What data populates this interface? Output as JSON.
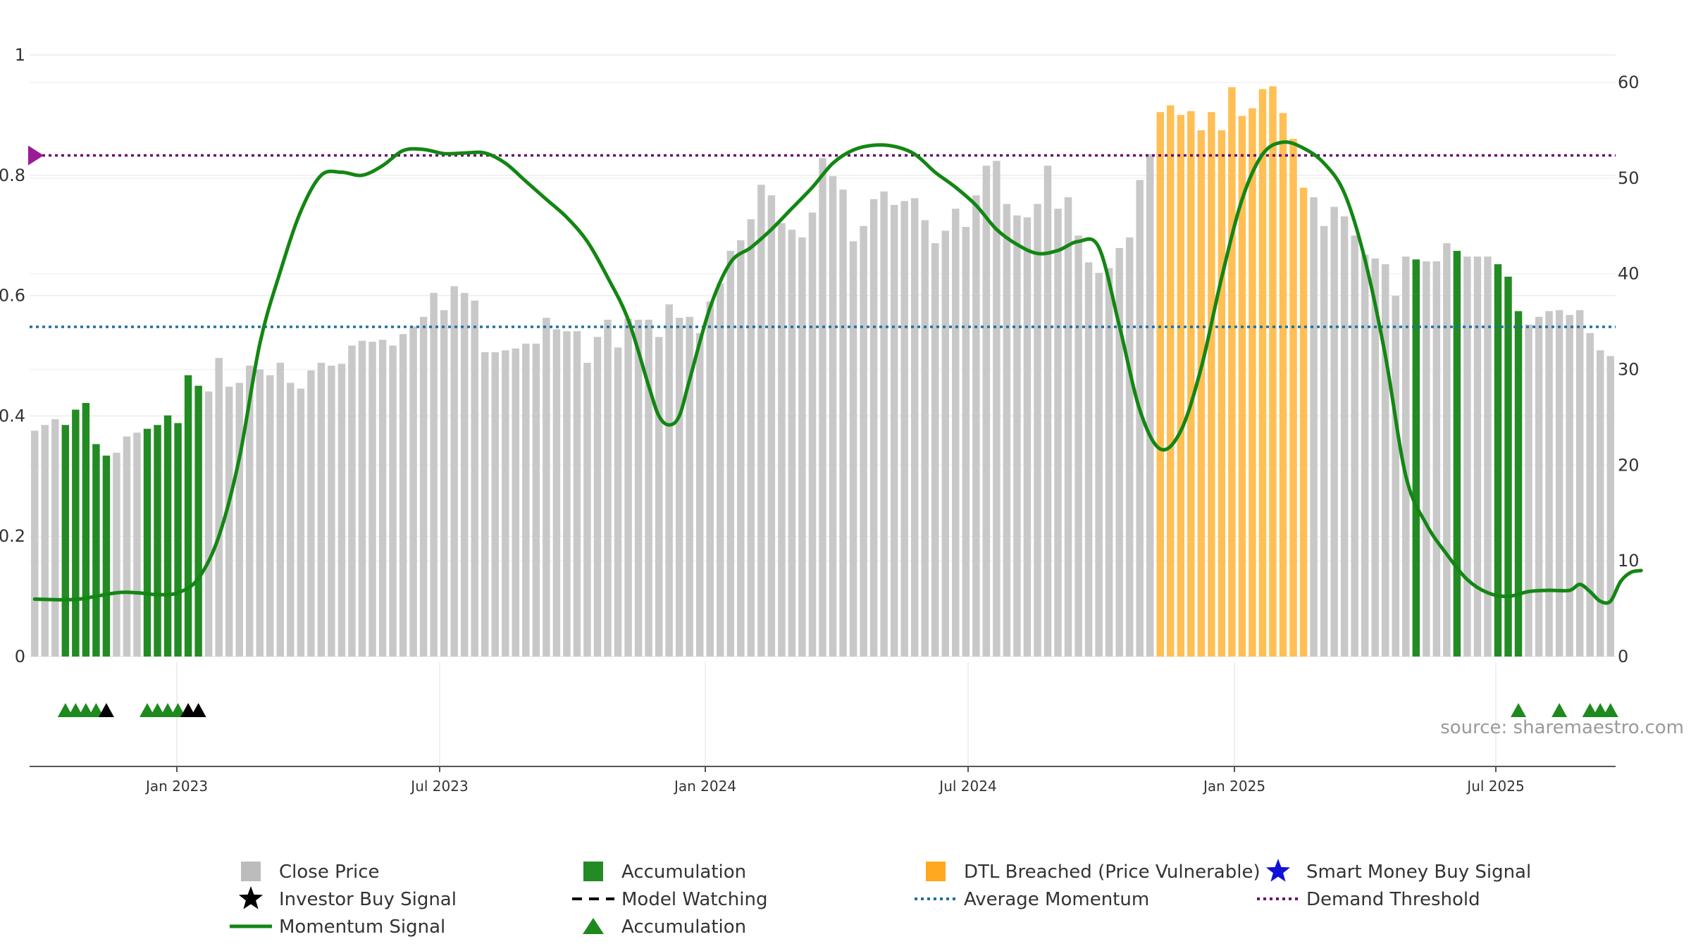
{
  "chart_data": {
    "type": "bar",
    "x_start": "2022-10-07",
    "x_ticks": [
      "Jan 2023",
      "Jul 2023",
      "Jan 2024",
      "Jul 2024",
      "Jan 2025",
      "Jul 2025"
    ],
    "y_left_ticks": [
      "0",
      "0.2",
      "0.4",
      "0.6",
      "0.8",
      "1"
    ],
    "y_left_lim": [
      0,
      1
    ],
    "y_right_ticks": [
      "0",
      "10",
      "20",
      "30",
      "40",
      "50",
      "60"
    ],
    "y_right_lim": [
      0,
      60
    ],
    "grid": true,
    "legend_position": "bottom",
    "close_price": [
      23.6,
      24.2,
      24.8,
      24.2,
      25.8,
      26.5,
      22.2,
      21,
      21.3,
      23,
      23.4,
      23.8,
      24.2,
      25.2,
      24.4,
      29.4,
      28.3,
      27.7,
      31.2,
      28.2,
      28.6,
      30.4,
      30,
      29.4,
      30.7,
      28.6,
      28,
      29.9,
      30.7,
      30.4,
      30.6,
      32.5,
      33,
      32.9,
      33.1,
      32.5,
      33.7,
      34.5,
      35.5,
      38,
      36.2,
      38.7,
      38,
      37.2,
      31.8,
      31.8,
      32,
      32.2,
      32.7,
      32.7,
      35.4,
      34.2,
      34,
      34,
      30.7,
      33.4,
      35.2,
      32.3,
      35.3,
      35.2,
      35.2,
      33.4,
      36.8,
      35.4,
      35.5,
      33.8,
      37.1,
      39,
      42.4,
      43.5,
      45.7,
      49.3,
      48.2,
      45.3,
      44.6,
      43.8,
      46.4,
      52.1,
      50.2,
      48.8,
      43.4,
      45,
      47.8,
      48.6,
      47.2,
      47.6,
      47.9,
      45.6,
      43.2,
      44.5,
      46.8,
      44.9,
      48.2,
      51.3,
      51.8,
      47.3,
      46.1,
      45.9,
      47.3,
      51.3,
      46.8,
      48,
      44,
      41.2,
      40.1,
      40.6,
      42.7,
      43.8,
      49.8,
      52.5,
      56.9,
      57.6,
      56.6,
      57,
      55,
      56.9,
      55,
      59.5,
      56.5,
      57.3,
      59.3,
      59.6,
      56.8,
      54.1,
      49,
      48,
      45,
      47,
      46,
      44,
      42,
      41.6,
      41,
      37.7,
      41.8,
      41.5,
      41.3,
      41.3,
      43.2,
      42.4,
      41.8,
      41.8,
      41.8,
      41,
      39.7,
      36.1,
      34.7,
      35.5,
      36.1,
      36.2,
      35.7,
      36.2,
      33.8,
      32,
      31.4
    ],
    "close_price_color": "#c8c8c8",
    "accumulation_bar_indices": [
      3,
      4,
      5,
      6,
      7,
      11,
      12,
      13,
      14,
      15,
      16,
      135,
      139,
      143,
      144,
      145
    ],
    "accumulation_color": "#238b23",
    "dtl_breached_bar_indices": [
      110,
      111,
      112,
      113,
      114,
      115,
      116,
      117,
      118,
      119,
      120,
      121,
      122,
      123,
      124
    ],
    "dtl_color": "#ffbf55",
    "momentum_signal": [
      [
        0,
        0.0955
      ],
      [
        4,
        0.095
      ],
      [
        8,
        0.106
      ],
      [
        10,
        0.106
      ],
      [
        12,
        0.103
      ],
      [
        14,
        0.106
      ],
      [
        16,
        0.13
      ],
      [
        18,
        0.2
      ],
      [
        20,
        0.33
      ],
      [
        22,
        0.52
      ],
      [
        24,
        0.64
      ],
      [
        26,
        0.74
      ],
      [
        28,
        0.8
      ],
      [
        30,
        0.805
      ],
      [
        32,
        0.8
      ],
      [
        34,
        0.816
      ],
      [
        36,
        0.841
      ],
      [
        38,
        0.843
      ],
      [
        40,
        0.836
      ],
      [
        42,
        0.837
      ],
      [
        44,
        0.837
      ],
      [
        46,
        0.82
      ],
      [
        48,
        0.79
      ],
      [
        50,
        0.76
      ],
      [
        52,
        0.73
      ],
      [
        54,
        0.69
      ],
      [
        56,
        0.63
      ],
      [
        58,
        0.56
      ],
      [
        60,
        0.45
      ],
      [
        61,
        0.4
      ],
      [
        62,
        0.385
      ],
      [
        63,
        0.4
      ],
      [
        64,
        0.46
      ],
      [
        66,
        0.58
      ],
      [
        68,
        0.655
      ],
      [
        70,
        0.68
      ],
      [
        72,
        0.71
      ],
      [
        74,
        0.745
      ],
      [
        76,
        0.78
      ],
      [
        78,
        0.82
      ],
      [
        80,
        0.842
      ],
      [
        82,
        0.85
      ],
      [
        84,
        0.848
      ],
      [
        86,
        0.835
      ],
      [
        88,
        0.805
      ],
      [
        90,
        0.78
      ],
      [
        92,
        0.75
      ],
      [
        94,
        0.71
      ],
      [
        96,
        0.685
      ],
      [
        98,
        0.67
      ],
      [
        100,
        0.675
      ],
      [
        102,
        0.69
      ],
      [
        104,
        0.68
      ],
      [
        106,
        0.55
      ],
      [
        108,
        0.41
      ],
      [
        110,
        0.345
      ],
      [
        112,
        0.375
      ],
      [
        114,
        0.48
      ],
      [
        116,
        0.63
      ],
      [
        118,
        0.76
      ],
      [
        120,
        0.835
      ],
      [
        122,
        0.855
      ],
      [
        124,
        0.845
      ],
      [
        126,
        0.82
      ],
      [
        128,
        0.77
      ],
      [
        130,
        0.66
      ],
      [
        132,
        0.5
      ],
      [
        134,
        0.3
      ],
      [
        136,
        0.22
      ],
      [
        138,
        0.17
      ],
      [
        140,
        0.128
      ],
      [
        142,
        0.106
      ],
      [
        144,
        0.1
      ],
      [
        146,
        0.108
      ],
      [
        148,
        0.11
      ],
      [
        150,
        0.11
      ],
      [
        151,
        0.12
      ],
      [
        152,
        0.108
      ],
      [
        153,
        0.092
      ],
      [
        154,
        0.092
      ],
      [
        155,
        0.125
      ],
      [
        156,
        0.14
      ],
      [
        157,
        0.143
      ]
    ],
    "momentum_color": "#138613",
    "average_momentum": 0.548,
    "average_momentum_color": "#1f6f9f",
    "demand_threshold": 0.833,
    "demand_threshold_color": "#6b0d6b",
    "accumulation_markers": [
      3,
      4,
      5,
      6,
      11,
      12,
      13,
      14,
      145,
      149,
      152,
      153,
      154
    ],
    "investor_buy_markers": [
      7,
      15,
      16
    ],
    "source_note": "source: sharemaestro.com",
    "legend": [
      {
        "label": "Close Price",
        "symbol": "square",
        "color": "#bcbcbc"
      },
      {
        "label": "Accumulation",
        "symbol": "square",
        "color": "#238b23"
      },
      {
        "label": "DTL Breached (Price Vulnerable)",
        "symbol": "square",
        "color": "#ffa820"
      },
      {
        "label": "Smart Money Buy Signal",
        "symbol": "star",
        "color": "#1010d8"
      },
      {
        "label": "Investor Buy Signal",
        "symbol": "star",
        "color": "#000000"
      },
      {
        "label": "Model Watching",
        "symbol": "dash",
        "color": "#000000"
      },
      {
        "label": "Average Momentum",
        "symbol": "dot",
        "color": "#1f6f9f"
      },
      {
        "label": "Demand Threshold",
        "symbol": "dot",
        "color": "#6b0d6b"
      },
      {
        "label": "Momentum Signal",
        "symbol": "line",
        "color": "#138613"
      },
      {
        "label": "Accumulation",
        "symbol": "triangle",
        "color": "#1e8a1e"
      }
    ]
  }
}
